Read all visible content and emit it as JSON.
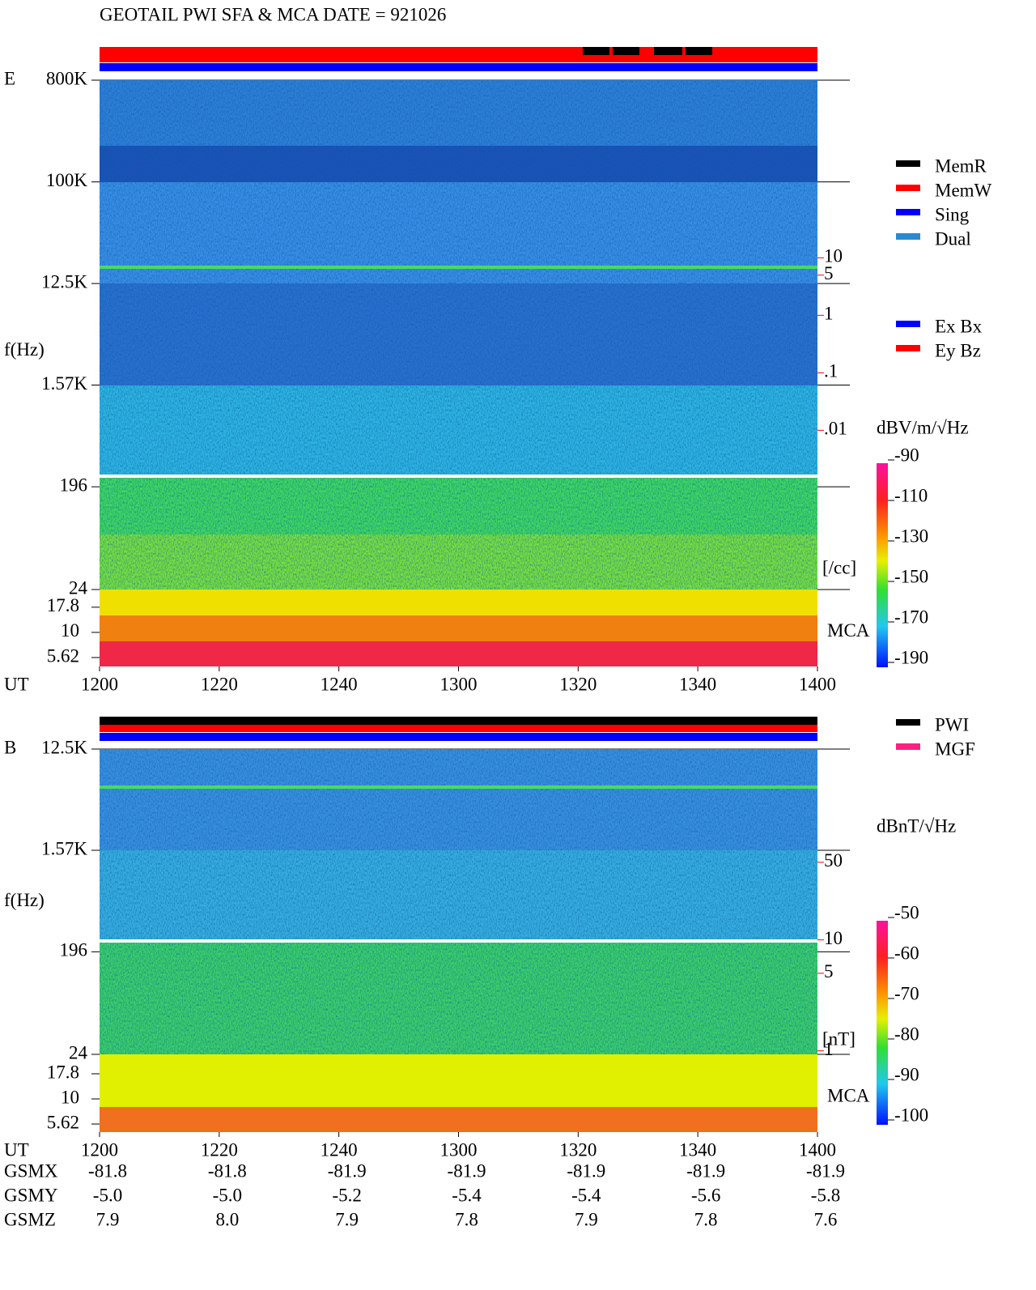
{
  "title": "GEOTAIL  PWI SFA & MCA   DATE = 921026",
  "chart_data": [
    {
      "type": "spectrogram",
      "panel_label": "E",
      "ylabel": "f(Hz)",
      "yscale": "log",
      "ylim": [
        24,
        800000
      ],
      "yticks": [
        {
          "value": 800000,
          "label": "800K"
        },
        {
          "value": 100000,
          "label": "100K"
        },
        {
          "value": 12500,
          "label": "12.5K"
        },
        {
          "value": 1570,
          "label": "1.57K"
        },
        196,
        24
      ],
      "mca_label": "MCA",
      "mca_ylim": [
        4.58,
        26.7
      ],
      "mca_yticks": [
        17.8,
        10,
        5.62
      ],
      "xlabel": "UT",
      "xticks": [
        "1200",
        "1220",
        "1240",
        "1300",
        "1320",
        "1340",
        "1400"
      ],
      "y2scale": "log",
      "y2lim": [
        1.7e-05,
        12300
      ],
      "y2color": "#ff0000",
      "y2ticks": [
        10,
        5,
        1,
        {
          "value": 0.1,
          "label": ".1"
        },
        {
          "value": 0.01,
          "label": ".01"
        }
      ],
      "y2label": "[/cc]",
      "colorbar": {
        "label": "dBV/m/√Hz",
        "zlim": [
          -190,
          -90
        ],
        "ticks": [
          -90,
          -110,
          -130,
          -150,
          -170,
          -190
        ]
      },
      "legends": [
        [
          {
            "name": "MemR",
            "color": "#000000"
          },
          {
            "name": "MemW",
            "color": "#ff0000"
          },
          {
            "name": "Sing",
            "color": "#0000ff"
          },
          {
            "name": "Dual",
            "color": "#2a8ad0"
          }
        ],
        [
          {
            "name": "Ex Bx",
            "color": "#0000ff"
          },
          {
            "name": "Ey Bz",
            "color": "#ff0000"
          }
        ]
      ]
    },
    {
      "type": "spectrogram",
      "panel_label": "B",
      "ylabel": "f(Hz)",
      "yscale": "log",
      "ylim": [
        24,
        12500
      ],
      "yticks": [
        {
          "value": 12500,
          "label": "12.5K"
        },
        {
          "value": 1570,
          "label": "1.57K"
        },
        196,
        24
      ],
      "mca_label": "MCA",
      "mca_ylim": [
        4.67,
        27.8
      ],
      "mca_yticks": [
        17.8,
        10,
        5.62
      ],
      "xlabel": "UT",
      "xticks": [
        "1200",
        "1220",
        "1240",
        "1300",
        "1320",
        "1340",
        "1400"
      ],
      "y2scale": "log",
      "y2lim": [
        0.93,
        524
      ],
      "y2color": "#ff0000",
      "y2ticks": [
        50,
        10,
        5,
        1
      ],
      "y2label": "[nT]",
      "colorbar": {
        "label": "dBnT/√Hz",
        "zlim": [
          -100,
          -50
        ],
        "ticks": [
          -50,
          -60,
          -70,
          -80,
          -90,
          -100
        ]
      },
      "legends": [
        [
          {
            "name": "PWI",
            "color": "#000000"
          },
          {
            "name": "MGF",
            "color": "#ff2080"
          }
        ]
      ]
    }
  ],
  "ephemeris": {
    "rows": [
      {
        "name": "GSMX",
        "values": [
          "-81.8",
          "-81.8",
          "-81.9",
          "-81.9",
          "-81.9",
          "-81.9",
          "-81.9"
        ]
      },
      {
        "name": "GSMY",
        "values": [
          "-5.0",
          "-5.0",
          "-5.2",
          "-5.4",
          "-5.4",
          "-5.6",
          "-5.8"
        ]
      },
      {
        "name": "GSMZ",
        "values": [
          "7.9",
          "8.0",
          "7.9",
          "7.8",
          "7.9",
          "7.8",
          "7.6"
        ]
      }
    ]
  }
}
